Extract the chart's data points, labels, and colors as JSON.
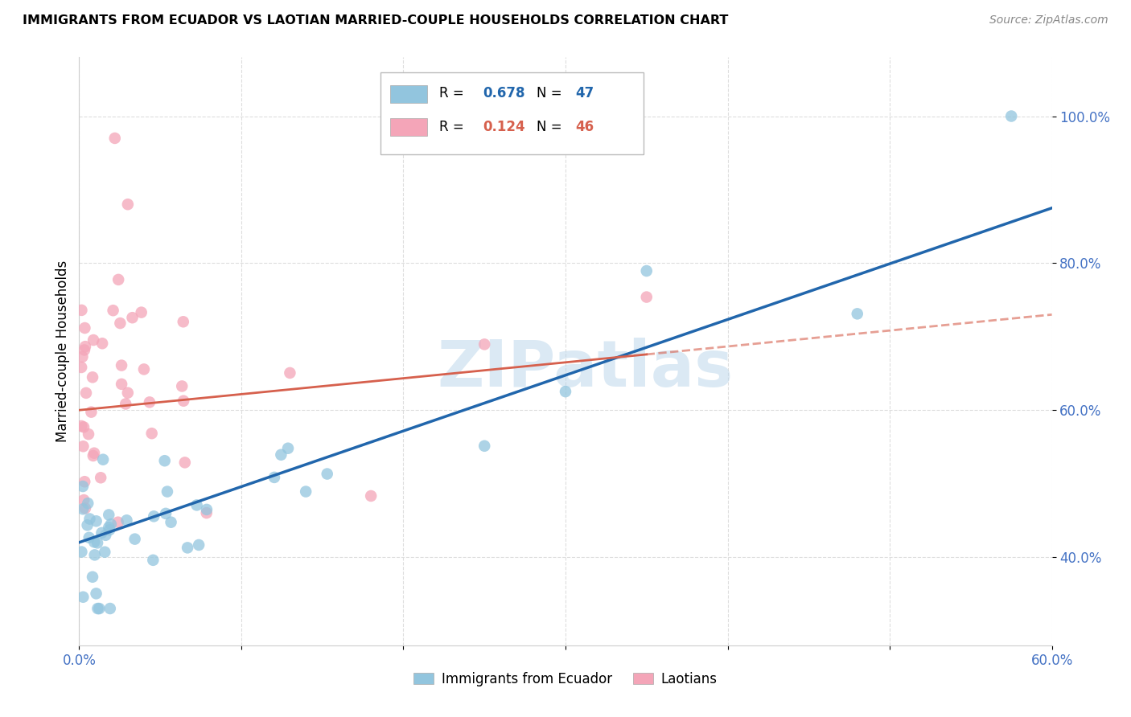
{
  "title": "IMMIGRANTS FROM ECUADOR VS LAOTIAN MARRIED-COUPLE HOUSEHOLDS CORRELATION CHART",
  "source": "Source: ZipAtlas.com",
  "ylabel": "Married-couple Households",
  "xlim": [
    0.0,
    0.6
  ],
  "ylim": [
    0.28,
    1.08
  ],
  "xticks": [
    0.0,
    0.1,
    0.2,
    0.3,
    0.4,
    0.5,
    0.6
  ],
  "xtick_labels": [
    "0.0%",
    "",
    "",
    "",
    "",
    "",
    "60.0%"
  ],
  "yticks": [
    0.4,
    0.6,
    0.8,
    1.0
  ],
  "ytick_labels": [
    "40.0%",
    "60.0%",
    "80.0%",
    "100.0%"
  ],
  "blue_color": "#92c5de",
  "pink_color": "#f4a5b8",
  "blue_line_color": "#2166ac",
  "pink_line_color": "#d6604d",
  "watermark_text": "ZIPatlas",
  "watermark_color": "#b8d4ea",
  "background_color": "#ffffff",
  "grid_color": "#dddddd",
  "tick_color": "#4472C4",
  "title_color": "#000000",
  "source_color": "#888888"
}
